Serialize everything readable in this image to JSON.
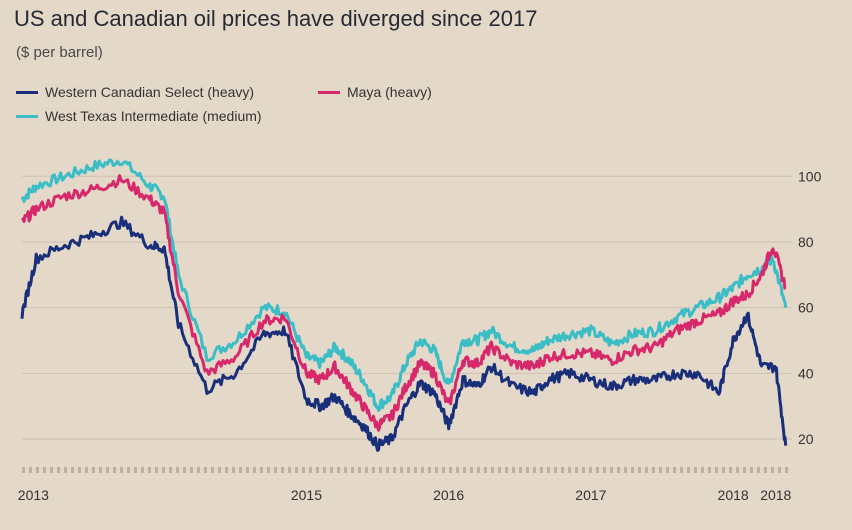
{
  "colors": {
    "background": "#e4d8c9",
    "wcs": "#1a2f7a",
    "maya": "#d6286a",
    "wti": "#3bbdc6",
    "grid": "#cdc1b2"
  },
  "chart_data": {
    "type": "line",
    "title": "US and Canadian oil prices have diverged since 2017",
    "subtitle": "($ per barrel)",
    "xlabel": "",
    "ylabel": "",
    "ylim": [
      13,
      108
    ],
    "yticks": [
      20,
      40,
      60,
      80,
      100
    ],
    "xlim": [
      2013.0,
      2018.4
    ],
    "xtick_labels": [
      "2013",
      "2015",
      "2016",
      "2017",
      "2018",
      "2018"
    ],
    "legend_position": "top-left",
    "grid": true,
    "series": [
      {
        "name": "Western Canadian Select (heavy)",
        "color_key": "wcs",
        "x": [
          2013.0,
          2013.1,
          2013.3,
          2013.5,
          2013.7,
          2013.9,
          2014.0,
          2014.1,
          2014.3,
          2014.5,
          2014.7,
          2014.85,
          2015.0,
          2015.1,
          2015.2,
          2015.3,
          2015.4,
          2015.5,
          2015.6,
          2015.7,
          2015.8,
          2015.9,
          2016.0,
          2016.1,
          2016.2,
          2016.3,
          2016.45,
          2016.6,
          2016.7,
          2016.85,
          2017.0,
          2017.15,
          2017.3,
          2017.45,
          2017.6,
          2017.75,
          2017.9,
          2018.0,
          2018.1,
          2018.2,
          2018.3,
          2018.37
        ],
        "values": [
          58,
          75,
          79,
          82,
          86,
          79,
          78,
          55,
          35,
          40,
          52,
          53,
          32,
          30,
          33,
          28,
          24,
          18,
          20,
          30,
          37,
          34,
          24,
          38,
          36,
          42,
          36,
          34,
          38,
          40,
          38,
          36,
          38,
          38,
          40,
          40,
          34,
          50,
          58,
          42,
          42,
          18
        ]
      },
      {
        "name": "Maya (heavy)",
        "color_key": "maya",
        "x": [
          2013.0,
          2013.1,
          2013.3,
          2013.5,
          2013.7,
          2013.9,
          2014.0,
          2014.1,
          2014.3,
          2014.5,
          2014.7,
          2014.85,
          2015.0,
          2015.1,
          2015.2,
          2015.3,
          2015.4,
          2015.5,
          2015.6,
          2015.7,
          2015.8,
          2015.9,
          2016.0,
          2016.1,
          2016.2,
          2016.3,
          2016.45,
          2016.6,
          2016.7,
          2016.85,
          2017.0,
          2017.15,
          2017.3,
          2017.45,
          2017.6,
          2017.75,
          2017.9,
          2018.0,
          2018.1,
          2018.2,
          2018.28,
          2018.37
        ],
        "values": [
          86,
          90,
          94,
          96,
          99,
          93,
          89,
          65,
          40,
          45,
          56,
          57,
          40,
          38,
          42,
          36,
          30,
          24,
          27,
          36,
          43,
          40,
          30,
          44,
          43,
          48,
          43,
          42,
          45,
          46,
          46,
          44,
          47,
          48,
          53,
          56,
          58,
          62,
          64,
          70,
          79,
          66
        ]
      },
      {
        "name": "West Texas Intermediate (medium)",
        "color_key": "wti",
        "x": [
          2013.0,
          2013.1,
          2013.3,
          2013.5,
          2013.7,
          2013.9,
          2014.0,
          2014.1,
          2014.3,
          2014.5,
          2014.7,
          2014.85,
          2015.0,
          2015.1,
          2015.2,
          2015.3,
          2015.4,
          2015.5,
          2015.6,
          2015.7,
          2015.8,
          2015.9,
          2016.0,
          2016.1,
          2016.2,
          2016.3,
          2016.45,
          2016.6,
          2016.7,
          2016.85,
          2017.0,
          2017.15,
          2017.3,
          2017.45,
          2017.6,
          2017.75,
          2017.9,
          2018.0,
          2018.1,
          2018.2,
          2018.28,
          2018.37
        ],
        "values": [
          93,
          97,
          100,
          103,
          105,
          97,
          94,
          70,
          45,
          50,
          60,
          59,
          45,
          43,
          48,
          44,
          38,
          30,
          33,
          43,
          50,
          47,
          36,
          50,
          50,
          53,
          48,
          47,
          50,
          52,
          53,
          49,
          52,
          53,
          57,
          60,
          63,
          66,
          70,
          72,
          75,
          60
        ]
      }
    ]
  }
}
